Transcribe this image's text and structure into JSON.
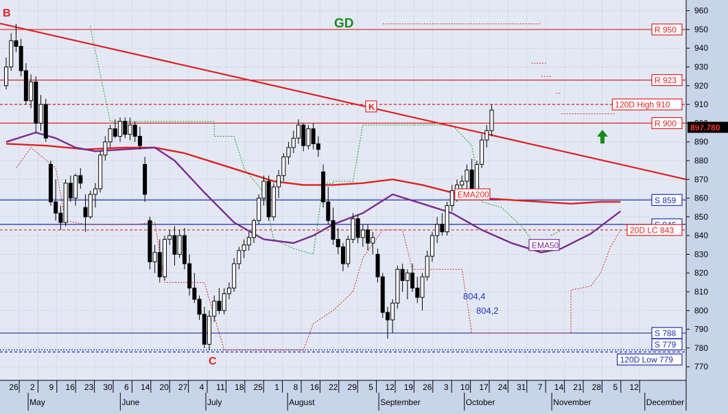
{
  "chart_data": {
    "type": "candlestick",
    "y_axis": {
      "min": 762,
      "max": 965,
      "side": "right",
      "ticks": [
        960,
        950,
        940,
        930,
        920,
        910,
        900,
        890,
        880,
        870,
        860,
        850,
        840,
        830,
        820,
        810,
        800,
        790,
        780,
        770
      ]
    },
    "x_axis": {
      "day_ticks": [
        "26",
        "2",
        "9",
        "16",
        "23",
        "30",
        "6",
        "14",
        "20",
        "27",
        "4",
        "11",
        "18",
        "25",
        "1",
        "8",
        "16",
        "22",
        "29",
        "5",
        "12",
        "19",
        "26",
        "3",
        "10",
        "17",
        "24",
        "31",
        "7",
        "14",
        "21",
        "28",
        "5",
        "12"
      ],
      "month_labels": [
        "May",
        "June",
        "July",
        "August",
        "September",
        "October",
        "November",
        "December"
      ]
    },
    "last_price": "897.780",
    "horizontal_levels": [
      {
        "label": "R 950",
        "value": 950,
        "style": "solid",
        "color": "#e02020"
      },
      {
        "label": "R 923",
        "value": 923,
        "style": "solid",
        "color": "#e02020"
      },
      {
        "label": "120D High 910",
        "value": 910,
        "style": "dashed",
        "color": "#e02020"
      },
      {
        "label": "R 900",
        "value": 900,
        "style": "solid",
        "color": "#e02020"
      },
      {
        "label": "S 859",
        "value": 859,
        "style": "solid",
        "color": "#1f2fa8"
      },
      {
        "label": "S 846",
        "value": 846,
        "style": "solid",
        "color": "#1f2fa8"
      },
      {
        "label": "20D LC 843",
        "value": 843,
        "style": "dashed",
        "color": "#e02020"
      },
      {
        "label": "S 788",
        "value": 788,
        "style": "solid",
        "color": "#1f2fa8"
      },
      {
        "label": "S 779",
        "value": 779,
        "style": "dotted",
        "color": "#1f2fa8"
      },
      {
        "label": "120D Low 779",
        "value": 779,
        "style": "dashed",
        "color": "#1f2fa8"
      }
    ],
    "trendline": {
      "from": [
        0,
        953
      ],
      "to": [
        153,
        870
      ],
      "color": "#e02020"
    },
    "point_labels": [
      {
        "text": "B",
        "x": 0,
        "y": 959,
        "color": "#e02020"
      },
      {
        "text": "C",
        "x": 44,
        "y": 775,
        "color": "#e02020"
      },
      {
        "text": "K",
        "x": 78,
        "y": 907,
        "color": "#e02020"
      },
      {
        "text": "GD",
        "x": 72,
        "y": 953,
        "color": "#1a8a1a"
      }
    ],
    "value_labels": [
      {
        "text": "804,4",
        "x": 100,
        "y": 811,
        "color": "#2233cc"
      },
      {
        "text": "804,2",
        "x": 104,
        "y": 802,
        "color": "#2233cc"
      }
    ],
    "ema200": {
      "label": "EMA200",
      "color": "#e02020",
      "points": [
        [
          0,
          889
        ],
        [
          8,
          888
        ],
        [
          16,
          886
        ],
        [
          24,
          887
        ],
        [
          30,
          887
        ],
        [
          36,
          884
        ],
        [
          42,
          879
        ],
        [
          48,
          874
        ],
        [
          54,
          869
        ],
        [
          60,
          867
        ],
        [
          66,
          867
        ],
        [
          72,
          868
        ],
        [
          78,
          870
        ],
        [
          84,
          867
        ],
        [
          90,
          863
        ],
        [
          96,
          860
        ],
        [
          102,
          859
        ],
        [
          108,
          858
        ],
        [
          114,
          857
        ],
        [
          120,
          858
        ],
        [
          124,
          858
        ]
      ]
    },
    "ema50": {
      "label": "EMA50",
      "color": "#7a2a90",
      "points": [
        [
          0,
          890
        ],
        [
          6,
          895
        ],
        [
          10,
          892
        ],
        [
          14,
          887
        ],
        [
          18,
          885
        ],
        [
          24,
          886
        ],
        [
          30,
          887
        ],
        [
          34,
          880
        ],
        [
          40,
          863
        ],
        [
          46,
          847
        ],
        [
          52,
          838
        ],
        [
          58,
          836
        ],
        [
          62,
          840
        ],
        [
          66,
          846
        ],
        [
          72,
          852
        ],
        [
          78,
          862
        ],
        [
          84,
          857
        ],
        [
          90,
          852
        ],
        [
          96,
          843
        ],
        [
          102,
          836
        ],
        [
          108,
          831
        ],
        [
          112,
          833
        ],
        [
          118,
          841
        ],
        [
          124,
          853
        ]
      ]
    },
    "dc_upper": {
      "color": "#1a9a1a",
      "points": [
        [
          17,
          952
        ],
        [
          17,
          951
        ],
        [
          21,
          901
        ],
        [
          42,
          901
        ],
        [
          42,
          893
        ],
        [
          46,
          893
        ],
        [
          48,
          876
        ],
        [
          52,
          863
        ],
        [
          54,
          838
        ],
        [
          58,
          833
        ],
        [
          62,
          830
        ],
        [
          64,
          868
        ],
        [
          66,
          868
        ],
        [
          66,
          869
        ],
        [
          70,
          869
        ],
        [
          72,
          899
        ],
        [
          90,
          899
        ],
        [
          94,
          888
        ],
        [
          96,
          858
        ],
        [
          100,
          855
        ],
        [
          104,
          845
        ],
        [
          106,
          838
        ]
      ]
    },
    "dc_lower": {
      "color": "#e02020",
      "points": [
        [
          2,
          876
        ],
        [
          5,
          887
        ],
        [
          10,
          876
        ],
        [
          12,
          848
        ],
        [
          16,
          846
        ],
        [
          26,
          846
        ],
        [
          30,
          847
        ],
        [
          32,
          815
        ],
        [
          40,
          815
        ],
        [
          44,
          779
        ],
        [
          60,
          779
        ],
        [
          62,
          793
        ],
        [
          66,
          800
        ],
        [
          70,
          810
        ],
        [
          72,
          828
        ],
        [
          76,
          843
        ],
        [
          80,
          843
        ],
        [
          82,
          822
        ],
        [
          92,
          822
        ],
        [
          94,
          788
        ],
        [
          114,
          788
        ],
        [
          114,
          811
        ],
        [
          118,
          813
        ],
        [
          120,
          820
        ],
        [
          122,
          834
        ],
        [
          124,
          843
        ]
      ]
    },
    "dashed_overlays": [
      {
        "color": "#1a9a1a",
        "points": [
          [
            110,
            840
          ],
          [
            112,
            843
          ]
        ]
      },
      {
        "color": "#e02020",
        "points": [
          [
            76,
            953
          ],
          [
            108,
            953
          ]
        ]
      },
      {
        "color": "#e02020",
        "points": [
          [
            106,
            932
          ],
          [
            109,
            932
          ]
        ]
      },
      {
        "color": "#e02020",
        "points": [
          [
            108,
            925
          ],
          [
            110,
            925
          ]
        ]
      },
      {
        "color": "#e02020",
        "points": [
          [
            111,
            916
          ],
          [
            112,
            916
          ]
        ]
      },
      {
        "color": "#e02020",
        "points": [
          [
            112,
            905
          ],
          [
            123,
            905
          ]
        ]
      }
    ],
    "candles": [
      [
        0,
        920,
        935,
        918,
        930
      ],
      [
        1,
        930,
        948,
        928,
        944
      ],
      [
        2,
        944,
        953,
        938,
        941
      ],
      [
        3,
        941,
        945,
        925,
        928
      ],
      [
        4,
        928,
        932,
        910,
        912
      ],
      [
        5,
        912,
        926,
        908,
        922
      ],
      [
        6,
        922,
        925,
        895,
        900
      ],
      [
        7,
        900,
        915,
        896,
        910
      ],
      [
        8,
        910,
        913,
        890,
        892
      ],
      [
        9,
        878,
        880,
        856,
        858
      ],
      [
        10,
        858,
        870,
        848,
        852
      ],
      [
        11,
        852,
        856,
        843,
        847
      ],
      [
        12,
        847,
        870,
        845,
        868
      ],
      [
        13,
        868,
        872,
        858,
        860
      ],
      [
        14,
        860,
        873,
        856,
        872
      ],
      [
        15,
        872,
        876,
        865,
        868
      ],
      [
        16,
        855,
        862,
        842,
        850
      ],
      [
        17,
        850,
        864,
        849,
        862
      ],
      [
        18,
        862,
        868,
        855,
        865
      ],
      [
        19,
        865,
        885,
        863,
        883
      ],
      [
        20,
        883,
        893,
        880,
        890
      ],
      [
        21,
        890,
        899,
        887,
        897
      ],
      [
        22,
        897,
        902,
        892,
        893
      ],
      [
        23,
        893,
        903,
        890,
        901
      ],
      [
        24,
        901,
        903,
        892,
        894
      ],
      [
        25,
        894,
        903,
        891,
        899
      ],
      [
        26,
        899,
        901,
        890,
        893
      ],
      [
        27,
        893,
        898,
        886,
        888
      ],
      [
        28,
        878,
        882,
        858,
        862
      ],
      [
        29,
        848,
        850,
        822,
        826
      ],
      [
        30,
        826,
        835,
        820,
        831
      ],
      [
        31,
        831,
        838,
        815,
        818
      ],
      [
        32,
        818,
        840,
        816,
        838
      ],
      [
        33,
        838,
        843,
        835,
        840
      ],
      [
        34,
        840,
        845,
        824,
        830
      ],
      [
        35,
        830,
        843,
        828,
        840
      ],
      [
        36,
        840,
        844,
        822,
        825
      ],
      [
        37,
        825,
        830,
        808,
        812
      ],
      [
        38,
        812,
        820,
        804,
        806
      ],
      [
        39,
        806,
        808,
        795,
        798
      ],
      [
        40,
        798,
        802,
        780,
        782
      ],
      [
        41,
        782,
        800,
        779,
        797
      ],
      [
        42,
        797,
        808,
        794,
        805
      ],
      [
        43,
        805,
        812,
        798,
        800
      ],
      [
        44,
        800,
        812,
        798,
        809
      ],
      [
        45,
        809,
        815,
        806,
        812
      ],
      [
        46,
        812,
        828,
        810,
        825
      ],
      [
        47,
        825,
        834,
        822,
        832
      ],
      [
        48,
        832,
        838,
        828,
        835
      ],
      [
        49,
        835,
        842,
        832,
        839
      ],
      [
        50,
        839,
        849,
        836,
        848
      ],
      [
        51,
        848,
        862,
        846,
        860
      ],
      [
        52,
        860,
        872,
        856,
        869
      ],
      [
        53,
        869,
        872,
        848,
        850
      ],
      [
        54,
        850,
        868,
        848,
        866
      ],
      [
        55,
        866,
        875,
        860,
        872
      ],
      [
        56,
        872,
        884,
        869,
        882
      ],
      [
        57,
        882,
        890,
        878,
        887
      ],
      [
        58,
        887,
        896,
        884,
        892
      ],
      [
        59,
        892,
        902,
        889,
        899
      ],
      [
        60,
        899,
        900,
        885,
        888
      ],
      [
        61,
        888,
        899,
        886,
        897
      ],
      [
        62,
        897,
        900,
        886,
        889
      ],
      [
        63,
        889,
        893,
        882,
        886
      ],
      [
        64,
        874,
        878,
        855,
        858
      ],
      [
        65,
        858,
        866,
        846,
        848
      ],
      [
        66,
        848,
        855,
        835,
        838
      ],
      [
        67,
        838,
        844,
        830,
        834
      ],
      [
        68,
        834,
        836,
        821,
        825
      ],
      [
        69,
        825,
        840,
        823,
        838
      ],
      [
        70,
        838,
        852,
        836,
        849
      ],
      [
        71,
        849,
        851,
        836,
        839
      ],
      [
        72,
        839,
        846,
        834,
        843
      ],
      [
        73,
        843,
        846,
        832,
        836
      ],
      [
        74,
        836,
        842,
        830,
        839
      ],
      [
        75,
        830,
        833,
        815,
        818
      ],
      [
        76,
        818,
        820,
        796,
        799
      ],
      [
        77,
        799,
        802,
        785,
        795
      ],
      [
        78,
        795,
        806,
        788,
        804
      ],
      [
        79,
        804,
        824,
        801,
        822
      ],
      [
        80,
        822,
        825,
        810,
        816
      ],
      [
        81,
        816,
        822,
        806,
        820
      ],
      [
        82,
        820,
        825,
        810,
        812
      ],
      [
        83,
        812,
        818,
        804,
        807
      ],
      [
        84,
        807,
        820,
        800,
        818
      ],
      [
        85,
        818,
        832,
        816,
        829
      ],
      [
        86,
        829,
        842,
        826,
        840
      ],
      [
        87,
        840,
        850,
        836,
        846
      ],
      [
        88,
        846,
        852,
        840,
        842
      ],
      [
        89,
        842,
        858,
        840,
        856
      ],
      [
        90,
        856,
        867,
        853,
        864
      ],
      [
        91,
        864,
        870,
        858,
        867
      ],
      [
        92,
        867,
        872,
        862,
        869
      ],
      [
        93,
        869,
        878,
        864,
        875
      ],
      [
        94,
        875,
        881,
        860,
        863
      ],
      [
        95,
        863,
        880,
        862,
        878
      ],
      [
        96,
        878,
        894,
        876,
        891
      ],
      [
        97,
        891,
        899,
        887,
        896
      ],
      [
        98,
        896,
        910,
        893,
        907
      ]
    ]
  }
}
